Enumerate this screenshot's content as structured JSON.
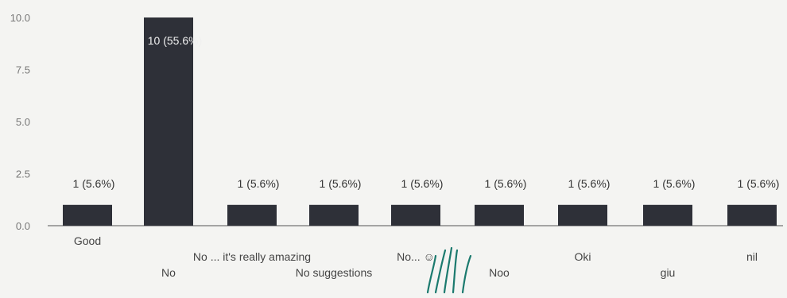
{
  "chart_data": {
    "type": "bar",
    "title": "",
    "xlabel": "",
    "ylabel": "",
    "ylim": [
      0,
      10
    ],
    "yticks": [
      "0.0",
      "2.5",
      "5.0",
      "7.5",
      "10.0"
    ],
    "grid": false,
    "legend": "none",
    "bar_color": "#2e3038",
    "categories": [
      "Good",
      "No",
      "No ... it's really amazing",
      "No suggestions",
      "No... ☺",
      "Noo",
      "Oki",
      "giu",
      "nil"
    ],
    "values": [
      1,
      10,
      1,
      1,
      1,
      1,
      1,
      1,
      1
    ],
    "data_labels": [
      "1 (5.6%)",
      "10 (55.6%)",
      "1 (5.6%)",
      "1 (5.6%)",
      "1 (5.6%)",
      "1 (5.6%)",
      "1 (5.6%)",
      "1 (5.6%)",
      "1 (5.6%)"
    ]
  }
}
